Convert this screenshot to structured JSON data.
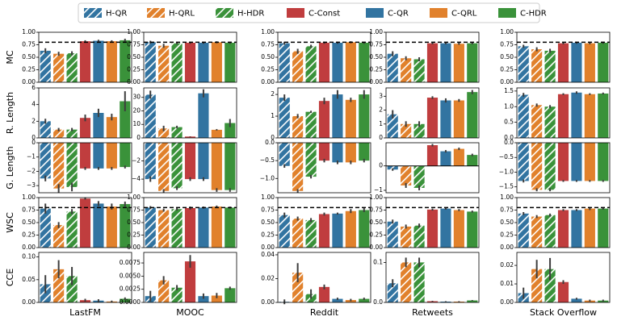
{
  "legend": [
    {
      "name": "H-QR",
      "color": "#3274a1",
      "hatch": true
    },
    {
      "name": "H-QRL",
      "color": "#e1812c",
      "hatch": true
    },
    {
      "name": "H-HDR",
      "color": "#3a923a",
      "hatch": true
    },
    {
      "name": "C-Const",
      "color": "#c03d3e",
      "hatch": false
    },
    {
      "name": "C-QR",
      "color": "#3274a1",
      "hatch": false
    },
    {
      "name": "C-QRL",
      "color": "#e1812c",
      "hatch": false
    },
    {
      "name": "C-HDR",
      "color": "#3a923a",
      "hatch": false
    }
  ],
  "row_labels": [
    "MC",
    "R. Length",
    "G. Length",
    "WSC",
    "CCE"
  ],
  "column_labels": [
    "LastFM",
    "MOOC",
    "Reddit",
    "Retweets",
    "Stack Overflow"
  ],
  "chart_data": [
    {
      "type": "bar",
      "values": [
        0.63,
        0.57,
        0.58,
        0.82,
        0.83,
        0.82,
        0.84
      ],
      "errors": [
        0.05,
        0.04,
        0.04,
        0.02,
        0.02,
        0.02,
        0.03
      ],
      "ylim": [
        0,
        1
      ],
      "yticks": [
        {
          "value": 0,
          "label": "0.00"
        },
        0.25,
        {
          "value": 0.5,
          "label": "0.50"
        },
        0.75,
        {
          "value": 1,
          "label": "1.00"
        }
      ],
      "reference_line": 0.8
    },
    {
      "type": "bar",
      "values": [
        0.8,
        0.73,
        0.78,
        0.79,
        0.79,
        0.8,
        0.79
      ],
      "errors": [
        0.03,
        0.04,
        0.02,
        0.02,
        0.02,
        0.02,
        0.02
      ],
      "ylim": [
        0,
        1
      ],
      "yticks": [
        {
          "value": 0,
          "label": "0.00"
        },
        0.25,
        {
          "value": 0.5,
          "label": "0.50"
        },
        0.75,
        {
          "value": 1,
          "label": "1.00"
        }
      ],
      "reference_line": 0.8
    },
    {
      "type": "bar",
      "values": [
        0.78,
        0.62,
        0.72,
        0.79,
        0.79,
        0.8,
        0.79
      ],
      "errors": [
        0.03,
        0.05,
        0.03,
        0.02,
        0.02,
        0.02,
        0.02
      ],
      "ylim": [
        0,
        1
      ],
      "yticks": [
        {
          "value": 0,
          "label": "0.00"
        },
        0.25,
        {
          "value": 0.5,
          "label": "0.50"
        },
        0.75,
        {
          "value": 1,
          "label": "1.00"
        }
      ],
      "reference_line": 0.8
    },
    {
      "type": "bar",
      "values": [
        0.57,
        0.48,
        0.46,
        0.78,
        0.78,
        0.77,
        0.78
      ],
      "errors": [
        0.05,
        0.04,
        0.04,
        0.02,
        0.02,
        0.02,
        0.02
      ],
      "ylim": [
        0,
        1
      ],
      "yticks": [
        {
          "value": 0,
          "label": "0.00"
        },
        0.25,
        {
          "value": 0.5,
          "label": "0.50"
        },
        0.75,
        {
          "value": 1,
          "label": "1.00"
        }
      ],
      "reference_line": 0.8
    },
    {
      "type": "bar",
      "values": [
        0.72,
        0.66,
        0.63,
        0.78,
        0.79,
        0.78,
        0.79
      ],
      "errors": [
        0.03,
        0.04,
        0.04,
        0.02,
        0.02,
        0.02,
        0.02
      ],
      "ylim": [
        0,
        1
      ],
      "yticks": [
        {
          "value": 0,
          "label": "0.00"
        },
        0.25,
        {
          "value": 0.5,
          "label": "0.50"
        },
        0.75,
        {
          "value": 1,
          "label": "1.00"
        }
      ],
      "reference_line": 0.8
    },
    {
      "type": "bar",
      "values": [
        2,
        1,
        1,
        2.4,
        3,
        2.5,
        4.4
      ],
      "errors": [
        0.3,
        0.2,
        0.2,
        0.4,
        0.5,
        0.4,
        1.2
      ],
      "ylim": [
        0,
        6
      ],
      "yticks": [
        0,
        2,
        4,
        6
      ]
    },
    {
      "type": "bar",
      "values": [
        32,
        7,
        8,
        1,
        33,
        6,
        11
      ],
      "errors": [
        3,
        2,
        1,
        0.2,
        3,
        0.5,
        3
      ],
      "ylim": [
        0,
        37
      ],
      "yticks": [
        0,
        10,
        20,
        30
      ]
    },
    {
      "type": "bar",
      "values": [
        1.85,
        1,
        1.2,
        1.7,
        2,
        1.75,
        2
      ],
      "errors": [
        0.15,
        0.1,
        0.05,
        0.15,
        0.2,
        0.1,
        0.2
      ],
      "ylim": [
        0,
        2.3
      ],
      "yticks": [
        0,
        1,
        2
      ]
    },
    {
      "type": "bar",
      "values": [
        1.7,
        1,
        1,
        2.9,
        2.7,
        2.7,
        3.3
      ],
      "errors": [
        0.3,
        0.2,
        0.2,
        0.1,
        0.15,
        0.1,
        0.15
      ],
      "ylim": [
        0,
        3.6
      ],
      "yticks": [
        0,
        1,
        2,
        3
      ]
    },
    {
      "type": "bar",
      "values": [
        1.38,
        1.05,
        1,
        1.4,
        1.45,
        1.4,
        1.42
      ],
      "errors": [
        0.06,
        0.05,
        0.05,
        0.03,
        0.04,
        0.03,
        0.03
      ],
      "ylim": [
        0,
        1.6
      ],
      "yticks": [
        {
          "value": 0,
          "label": "0.0"
        },
        0.5,
        {
          "value": 1,
          "label": "1.0"
        },
        1.5
      ]
    },
    {
      "type": "bar",
      "values": [
        -2.5,
        -3.2,
        -3.1,
        -1.8,
        -1.8,
        -1.8,
        -1.7
      ],
      "errors": [
        0.2,
        0.3,
        0.3,
        0.1,
        0.1,
        0.1,
        0.1
      ],
      "ylim": [
        -3.5,
        0
      ],
      "yticks": [
        {
          "value": -3,
          "label": "−3"
        },
        {
          "value": -2,
          "label": "−2"
        },
        {
          "value": -1,
          "label": "−1"
        },
        0
      ]
    },
    {
      "type": "bar",
      "values": [
        -4,
        -5.3,
        -5,
        -4,
        -4,
        -5.2,
        -5.2
      ],
      "errors": [
        0.3,
        0.2,
        0.2,
        0.2,
        0.2,
        0.2,
        0.2
      ],
      "ylim": [
        -5.5,
        0
      ],
      "yticks": [
        {
          "value": -4,
          "label": "−4"
        },
        {
          "value": -2,
          "label": "−2"
        }
      ]
    },
    {
      "type": "bar",
      "values": [
        -0.65,
        -1.35,
        -0.95,
        -0.5,
        -0.55,
        -0.55,
        -0.5
      ],
      "errors": [
        0.05,
        0.05,
        0.05,
        0.05,
        0.05,
        0.05,
        0.05
      ],
      "ylim": [
        -1.4,
        0
      ],
      "yticks": [
        {
          "value": -1,
          "label": "−1.0"
        },
        {
          "value": -0.5,
          "label": "−0.5"
        },
        {
          "value": 0,
          "label": "0.0"
        }
      ]
    },
    {
      "type": "bar",
      "values": [
        -0.15,
        -0.8,
        -0.9,
        0.85,
        0.6,
        0.7,
        0.45
      ],
      "errors": [
        0.05,
        0.1,
        0.1,
        0.05,
        0.05,
        0.05,
        0.05
      ],
      "ylim": [
        -1.1,
        0.95
      ],
      "yticks": [
        {
          "value": -1,
          "label": "−1"
        },
        0
      ],
      "zero_line": true
    },
    {
      "type": "bar",
      "values": [
        -1.3,
        -1.6,
        -1.6,
        -1.3,
        -1.3,
        -1.3,
        -1.3
      ],
      "errors": [
        0.05,
        0.05,
        0.05,
        0.03,
        0.03,
        0.03,
        0.03
      ],
      "ylim": [
        -1.7,
        0
      ],
      "yticks": [
        {
          "value": -1.5,
          "label": "−1.5"
        },
        {
          "value": -1,
          "label": "−1.0"
        },
        {
          "value": -0.5,
          "label": "−0.5"
        },
        {
          "value": 0,
          "label": "0.0"
        }
      ]
    },
    {
      "type": "bar",
      "values": [
        0.78,
        0.45,
        0.72,
        0.98,
        0.88,
        0.82,
        0.87
      ],
      "errors": [
        0.1,
        0.06,
        0.05,
        0.02,
        0.05,
        0.06,
        0.05
      ],
      "ylim": [
        0,
        1
      ],
      "yticks": [
        {
          "value": 0,
          "label": "0.00"
        },
        0.25,
        {
          "value": 0.5,
          "label": "0.50"
        },
        0.75,
        {
          "value": 1,
          "label": "1.00"
        }
      ],
      "reference_line": 0.8
    },
    {
      "type": "bar",
      "values": [
        0.8,
        0.75,
        0.77,
        0.79,
        0.8,
        0.82,
        0.8
      ],
      "errors": [
        0.03,
        0.03,
        0.03,
        0.03,
        0.02,
        0.02,
        0.02
      ],
      "ylim": [
        0,
        1
      ],
      "yticks": [
        {
          "value": 0,
          "label": "0.00"
        },
        0.25,
        {
          "value": 0.5,
          "label": "0.50"
        },
        0.75,
        {
          "value": 1,
          "label": "1.00"
        }
      ],
      "reference_line": 0.8
    },
    {
      "type": "bar",
      "values": [
        0.65,
        0.58,
        0.55,
        0.67,
        0.68,
        0.73,
        0.75
      ],
      "errors": [
        0.05,
        0.04,
        0.04,
        0.03,
        0.02,
        0.04,
        0.04
      ],
      "ylim": [
        0,
        1
      ],
      "yticks": [
        {
          "value": 0,
          "label": "0.00"
        },
        0.25,
        {
          "value": 0.5,
          "label": "0.50"
        },
        0.75,
        {
          "value": 1,
          "label": "1.00"
        }
      ],
      "reference_line": 0.8
    },
    {
      "type": "bar",
      "values": [
        0.52,
        0.42,
        0.44,
        0.76,
        0.78,
        0.75,
        0.72
      ],
      "errors": [
        0.04,
        0.04,
        0.04,
        0.02,
        0.02,
        0.02,
        0.02
      ],
      "ylim": [
        0,
        1
      ],
      "yticks": [
        {
          "value": 0,
          "label": "0.00"
        },
        0.25,
        {
          "value": 0.5,
          "label": "0.50"
        },
        0.75,
        {
          "value": 1,
          "label": "1.00"
        }
      ],
      "reference_line": 0.8
    },
    {
      "type": "bar",
      "values": [
        0.68,
        0.62,
        0.65,
        0.75,
        0.75,
        0.78,
        0.78
      ],
      "errors": [
        0.03,
        0.03,
        0.03,
        0.02,
        0.02,
        0.03,
        0.02
      ],
      "ylim": [
        0,
        1
      ],
      "yticks": [
        {
          "value": 0,
          "label": "0.00"
        },
        0.25,
        {
          "value": 0.5,
          "label": "0.50"
        },
        0.75,
        {
          "value": 1,
          "label": "1.00"
        }
      ],
      "reference_line": 0.8
    },
    {
      "type": "bar",
      "values": [
        0.04,
        0.073,
        0.058,
        0.005,
        0.004,
        0.002,
        0.008
      ],
      "errors": [
        0.02,
        0.02,
        0.02,
        0.003,
        0.003,
        0.002,
        0.003
      ],
      "ylim": [
        0,
        0.11
      ],
      "yticks": [
        {
          "value": 0,
          "label": "0.00"
        },
        0.05,
        {
          "value": 0.1,
          "label": "0.10"
        }
      ]
    },
    {
      "type": "bar",
      "values": [
        0.0012,
        0.0042,
        0.0028,
        0.0078,
        0.0012,
        0.0013,
        0.0027
      ],
      "errors": [
        0.001,
        0.0008,
        0.0005,
        0.0012,
        0.0005,
        0.0005,
        0.0003
      ],
      "ylim": [
        0,
        0.0095
      ],
      "yticks": [
        {
          "value": 0,
          "label": "0.0000"
        },
        0.0025,
        {
          "value": 0.005,
          "label": "0.0050"
        },
        0.0075
      ]
    },
    {
      "type": "bar",
      "values": [
        0.0005,
        0.025,
        0.007,
        0.013,
        0.003,
        0.002,
        0.003
      ],
      "errors": [
        0.002,
        0.008,
        0.004,
        0.002,
        0.001,
        0.001,
        0.001
      ],
      "ylim": [
        0,
        0.042
      ],
      "yticks": [
        {
          "value": 0,
          "label": "0.00"
        },
        0.02,
        0.04
      ]
    },
    {
      "type": "bar",
      "values": [
        0.048,
        0.1,
        0.1,
        0.003,
        0.002,
        0.002,
        0.005
      ],
      "errors": [
        0.01,
        0.012,
        0.012,
        0.001,
        0.001,
        0.001,
        0.001
      ],
      "ylim": [
        0,
        0.125
      ],
      "yticks": [
        {
          "value": 0,
          "label": "0.0"
        },
        0.1
      ]
    },
    {
      "type": "bar",
      "values": [
        0.005,
        0.018,
        0.018,
        0.011,
        0.002,
        0.001,
        0.001
      ],
      "errors": [
        0.003,
        0.005,
        0.006,
        0.001,
        0.0005,
        0.0005,
        0.0005
      ],
      "ylim": [
        0,
        0.027
      ],
      "yticks": [
        {
          "value": 0,
          "label": "0.00"
        },
        0.01,
        0.02
      ]
    }
  ]
}
